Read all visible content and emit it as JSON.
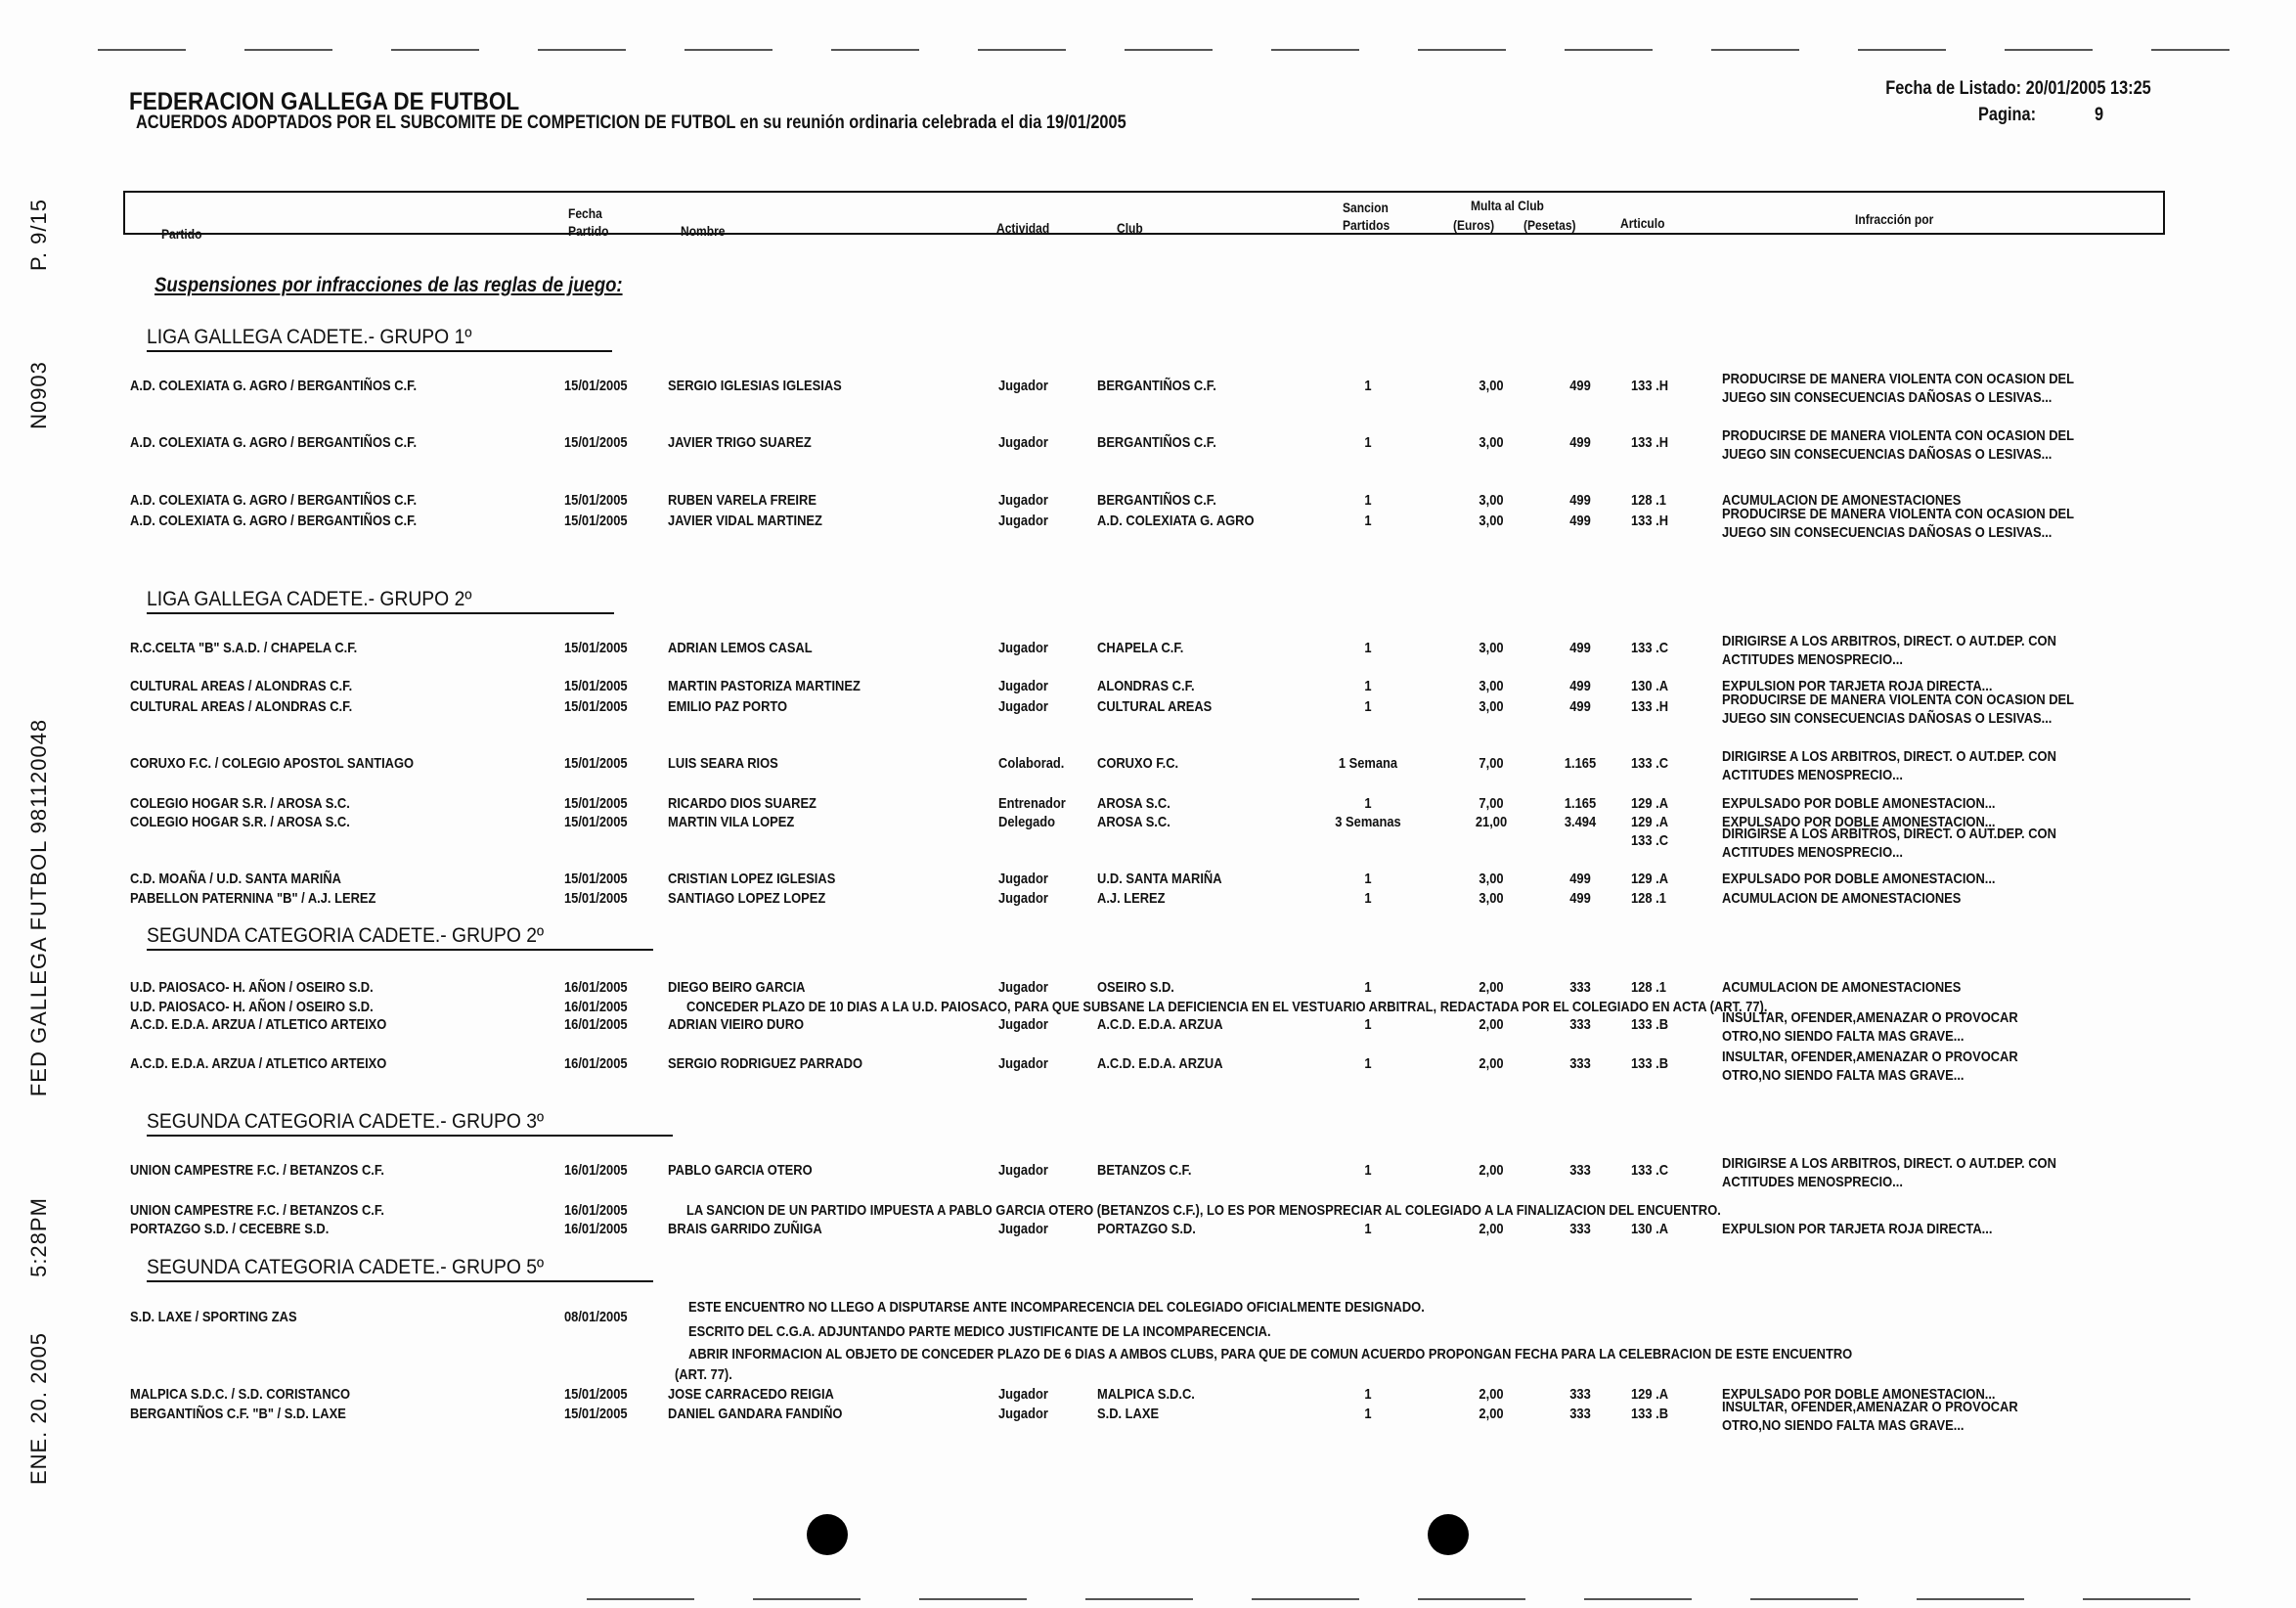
{
  "header": {
    "title": "FEDERACION GALLEGA DE FUTBOL",
    "subtitle": "ACUERDOS ADOPTADOS POR EL SUBCOMITE DE COMPETICION DE FUTBOL en su reunión ordinaria celebrada el dia 19/01/2005",
    "listing_date": "Fecha de Listado: 20/01/2005 13:25",
    "page_label": "Pagina:",
    "page_number": "9"
  },
  "fax_header": {
    "date": "ENE. 20. 2005",
    "time": "5:28PM",
    "sender": "FED GALLEGA FUTBOL 981120048",
    "number": "N0903",
    "page": "P. 9/15"
  },
  "columns": {
    "partido": "Partido",
    "fecha_1": "Fecha",
    "fecha_2": "Partido",
    "nombre": "Nombre",
    "actividad": "Actividad",
    "club": "Club",
    "sancion_1": "Sancion",
    "sancion_2": "Partidos",
    "multa": "Multa al Club",
    "euros": "(Euros)",
    "pesetas": "(Pesetas)",
    "articulo": "Articulo",
    "infraccion": "Infracción por"
  },
  "section_title": "Suspensiones por infracciones de las reglas de juego:",
  "groups": [
    "LIGA GALLEGA CADETE.- GRUPO 1º",
    "LIGA GALLEGA CADETE.- GRUPO 2º",
    "SEGUNDA CATEGORIA CADETE.- GRUPO 2º",
    "SEGUNDA CATEGORIA CADETE.- GRUPO 3º",
    "SEGUNDA CATEGORIA CADETE.- GRUPO 5º"
  ],
  "rows": [
    {
      "partido": "A.D. COLEXIATA G. AGRO / BERGANTIÑOS C.F.",
      "fecha": "15/01/2005",
      "nombre": "SERGIO IGLESIAS IGLESIAS",
      "actividad": "Jugador",
      "club": "BERGANTIÑOS C.F.",
      "sancion": "1",
      "euros": "3,00",
      "pesetas": "499",
      "articulo": "133 .H",
      "infraccion": [
        "PRODUCIRSE DE MANERA VIOLENTA CON OCASION DEL",
        "JUEGO SIN CONSECUENCIAS DAÑOSAS O LESIVAS..."
      ]
    },
    {
      "partido": "A.D. COLEXIATA G. AGRO / BERGANTIÑOS C.F.",
      "fecha": "15/01/2005",
      "nombre": "JAVIER TRIGO SUAREZ",
      "actividad": "Jugador",
      "club": "BERGANTIÑOS C.F.",
      "sancion": "1",
      "euros": "3,00",
      "pesetas": "499",
      "articulo": "133 .H",
      "infraccion": [
        "PRODUCIRSE DE MANERA VIOLENTA CON OCASION DEL",
        "JUEGO SIN CONSECUENCIAS DAÑOSAS O LESIVAS..."
      ]
    },
    {
      "partido": "A.D. COLEXIATA G. AGRO / BERGANTIÑOS C.F.",
      "fecha": "15/01/2005",
      "nombre": "RUBEN VARELA FREIRE",
      "actividad": "Jugador",
      "club": "BERGANTIÑOS C.F.",
      "sancion": "1",
      "euros": "3,00",
      "pesetas": "499",
      "articulo": "128 .1",
      "infraccion": [
        "ACUMULACION DE AMONESTACIONES"
      ]
    },
    {
      "partido": "A.D. COLEXIATA G. AGRO / BERGANTIÑOS C.F.",
      "fecha": "15/01/2005",
      "nombre": "JAVIER VIDAL MARTINEZ",
      "actividad": "Jugador",
      "club": "A.D. COLEXIATA G. AGRO",
      "sancion": "1",
      "euros": "3,00",
      "pesetas": "499",
      "articulo": "133 .H",
      "infraccion": [
        "PRODUCIRSE DE MANERA VIOLENTA CON OCASION DEL",
        "JUEGO SIN CONSECUENCIAS DAÑOSAS O LESIVAS..."
      ]
    },
    {
      "partido": "R.C.CELTA \"B\" S.A.D. / CHAPELA C.F.",
      "fecha": "15/01/2005",
      "nombre": "ADRIAN LEMOS CASAL",
      "actividad": "Jugador",
      "club": "CHAPELA C.F.",
      "sancion": "1",
      "euros": "3,00",
      "pesetas": "499",
      "articulo": "133 .C",
      "infraccion": [
        "DIRIGIRSE A LOS ARBITROS, DIRECT. O AUT.DEP. CON",
        "ACTITUDES MENOSPRECIO..."
      ]
    },
    {
      "partido": "CULTURAL AREAS / ALONDRAS C.F.",
      "fecha": "15/01/2005",
      "nombre": "MARTIN PASTORIZA MARTINEZ",
      "actividad": "Jugador",
      "club": "ALONDRAS C.F.",
      "sancion": "1",
      "euros": "3,00",
      "pesetas": "499",
      "articulo": "130 .A",
      "infraccion": [
        "EXPULSION POR TARJETA ROJA DIRECTA..."
      ]
    },
    {
      "partido": "CULTURAL AREAS / ALONDRAS C.F.",
      "fecha": "15/01/2005",
      "nombre": "EMILIO PAZ PORTO",
      "actividad": "Jugador",
      "club": "CULTURAL AREAS",
      "sancion": "1",
      "euros": "3,00",
      "pesetas": "499",
      "articulo": "133 .H",
      "infraccion": [
        "PRODUCIRSE DE MANERA VIOLENTA CON OCASION DEL",
        "JUEGO SIN CONSECUENCIAS DAÑOSAS O LESIVAS..."
      ]
    },
    {
      "partido": "CORUXO F.C. / COLEGIO APOSTOL SANTIAGO",
      "fecha": "15/01/2005",
      "nombre": "LUIS SEARA RIOS",
      "actividad": "Colaborad.",
      "club": "CORUXO F.C.",
      "sancion": "1 Semana",
      "euros": "7,00",
      "pesetas": "1.165",
      "articulo": "133 .C",
      "infraccion": [
        "DIRIGIRSE A LOS ARBITROS, DIRECT. O AUT.DEP. CON",
        "ACTITUDES MENOSPRECIO..."
      ]
    },
    {
      "partido": "COLEGIO HOGAR S.R. / AROSA S.C.",
      "fecha": "15/01/2005",
      "nombre": "RICARDO DIOS SUAREZ",
      "actividad": "Entrenador",
      "club": "AROSA S.C.",
      "sancion": "1",
      "euros": "7,00",
      "pesetas": "1.165",
      "articulo": "129 .A",
      "infraccion": [
        "EXPULSADO POR DOBLE AMONESTACION..."
      ]
    },
    {
      "partido": "COLEGIO HOGAR S.R. / AROSA S.C.",
      "fecha": "15/01/2005",
      "nombre": "MARTIN VILA LOPEZ",
      "actividad": "Delegado",
      "club": "AROSA S.C.",
      "sancion": "3 Semanas",
      "euros": "21,00",
      "pesetas": "3.494",
      "articulo": "129 .A",
      "infraccion": [
        "EXPULSADO POR DOBLE AMONESTACION..."
      ]
    },
    {
      "articulo": "133 .C",
      "infraccion": [
        "DIRIGIRSE A LOS ARBITROS, DIRECT. O AUT.DEP. CON",
        "ACTITUDES MENOSPRECIO..."
      ]
    },
    {
      "partido": "C.D. MOAÑA / U.D. SANTA MARIÑA",
      "fecha": "15/01/2005",
      "nombre": "CRISTIAN LOPEZ IGLESIAS",
      "actividad": "Jugador",
      "club": "U.D. SANTA MARIÑA",
      "sancion": "1",
      "euros": "3,00",
      "pesetas": "499",
      "articulo": "129 .A",
      "infraccion": [
        "EXPULSADO POR DOBLE AMONESTACION..."
      ]
    },
    {
      "partido": "PABELLON PATERNINA \"B\" / A.J. LEREZ",
      "fecha": "15/01/2005",
      "nombre": "SANTIAGO LOPEZ LOPEZ",
      "actividad": "Jugador",
      "club": "A.J. LEREZ",
      "sancion": "1",
      "euros": "3,00",
      "pesetas": "499",
      "articulo": "128 .1",
      "infraccion": [
        "ACUMULACION DE AMONESTACIONES"
      ]
    },
    {
      "partido": "U.D. PAIOSACO- H. AÑON / OSEIRO S.D.",
      "fecha": "16/01/2005",
      "nombre": "DIEGO BEIRO GARCIA",
      "actividad": "Jugador",
      "club": "OSEIRO S.D.",
      "sancion": "1",
      "euros": "2,00",
      "pesetas": "333",
      "articulo": "128 .1",
      "infraccion": [
        "ACUMULACION DE AMONESTACIONES"
      ]
    },
    {
      "partido": "U.D. PAIOSACO- H. AÑON / OSEIRO S.D.",
      "fecha": "16/01/2005",
      "note": "CONCEDER PLAZO DE 10 DIAS A LA U.D. PAIOSACO, PARA QUE SUBSANE LA DEFICIENCIA EN EL VESTUARIO ARBITRAL, REDACTADA POR EL COLEGIADO EN ACTA (ART. 77)."
    },
    {
      "partido": "A.C.D. E.D.A. ARZUA / ATLETICO ARTEIXO",
      "fecha": "16/01/2005",
      "nombre": "ADRIAN VIEIRO DURO",
      "actividad": "Jugador",
      "club": "A.C.D. E.D.A. ARZUA",
      "sancion": "1",
      "euros": "2,00",
      "pesetas": "333",
      "articulo": "133 .B",
      "infraccion": [
        "INSULTAR, OFENDER,AMENAZAR O PROVOCAR",
        "OTRO,NO SIENDO FALTA MAS GRAVE..."
      ]
    },
    {
      "partido": "A.C.D. E.D.A. ARZUA / ATLETICO ARTEIXO",
      "fecha": "16/01/2005",
      "nombre": "SERGIO RODRIGUEZ PARRADO",
      "actividad": "Jugador",
      "club": "A.C.D. E.D.A. ARZUA",
      "sancion": "1",
      "euros": "2,00",
      "pesetas": "333",
      "articulo": "133 .B",
      "infraccion": [
        "INSULTAR, OFENDER,AMENAZAR O PROVOCAR",
        "OTRO,NO SIENDO FALTA MAS GRAVE..."
      ]
    },
    {
      "partido": "UNION CAMPESTRE F.C. / BETANZOS C.F.",
      "fecha": "16/01/2005",
      "nombre": "PABLO GARCIA OTERO",
      "actividad": "Jugador",
      "club": "BETANZOS C.F.",
      "sancion": "1",
      "euros": "2,00",
      "pesetas": "333",
      "articulo": "133 .C",
      "infraccion": [
        "DIRIGIRSE A LOS ARBITROS, DIRECT. O AUT.DEP. CON",
        "ACTITUDES MENOSPRECIO..."
      ]
    },
    {
      "partido": "UNION CAMPESTRE F.C. / BETANZOS C.F.",
      "fecha": "16/01/2005",
      "note": "LA SANCION DE UN PARTIDO IMPUESTA A PABLO GARCIA OTERO (BETANZOS C.F.), LO ES POR MENOSPRECIAR AL COLEGIADO A LA FINALIZACION DEL ENCUENTRO."
    },
    {
      "partido": "PORTAZGO S.D. / CECEBRE S.D.",
      "fecha": "16/01/2005",
      "nombre": "BRAIS GARRIDO ZUÑIGA",
      "actividad": "Jugador",
      "club": "PORTAZGO S.D.",
      "sancion": "1",
      "euros": "2,00",
      "pesetas": "333",
      "articulo": "130 .A",
      "infraccion": [
        "EXPULSION POR TARJETA ROJA DIRECTA..."
      ]
    },
    {
      "partido": "S.D. LAXE / SPORTING ZAS",
      "fecha": "08/01/2005",
      "notes": [
        "ESTE ENCUENTRO NO LLEGO A DISPUTARSE ANTE INCOMPARECENCIA DEL COLEGIADO OFICIALMENTE DESIGNADO.",
        "ESCRITO DEL C.G.A. ADJUNTANDO PARTE MEDICO JUSTIFICANTE DE LA INCOMPARECENCIA.",
        "ABRIR INFORMACION AL OBJETO DE CONCEDER PLAZO DE 6 DIAS A AMBOS CLUBS, PARA QUE DE COMUN ACUERDO PROPONGAN FECHA PARA LA CELEBRACION DE ESTE ENCUENTRO",
        "(ART. 77)."
      ]
    },
    {
      "partido": "MALPICA S.D.C. / S.D. CORISTANCO",
      "fecha": "15/01/2005",
      "nombre": "JOSE CARRACEDO REIGIA",
      "actividad": "Jugador",
      "club": "MALPICA S.D.C.",
      "sancion": "1",
      "euros": "2,00",
      "pesetas": "333",
      "articulo": "129 .A",
      "infraccion": [
        "EXPULSADO POR DOBLE AMONESTACION..."
      ]
    },
    {
      "partido": "BERGANTIÑOS C.F. \"B\" / S.D. LAXE",
      "fecha": "15/01/2005",
      "nombre": "DANIEL GANDARA FANDIÑO",
      "actividad": "Jugador",
      "club": "S.D. LAXE",
      "sancion": "1",
      "euros": "2,00",
      "pesetas": "333",
      "articulo": "133 .B",
      "infraccion": [
        "INSULTAR, OFENDER,AMENAZAR O PROVOCAR",
        "OTRO,NO SIENDO FALTA MAS GRAVE..."
      ]
    }
  ]
}
